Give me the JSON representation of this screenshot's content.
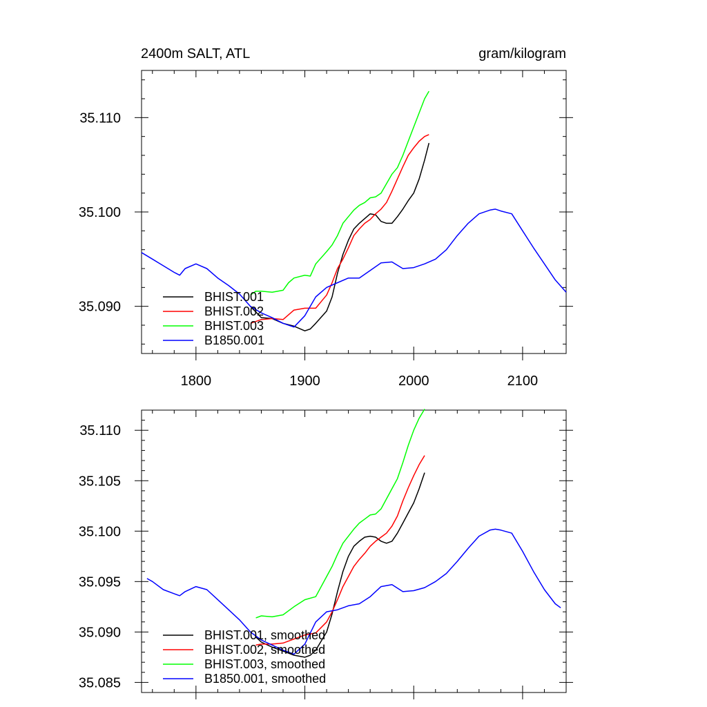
{
  "chart_data": [
    {
      "type": "line",
      "title_left": "2400m SALT, ATL",
      "title_right": "gram/kilogram",
      "xlim": [
        1750,
        2140
      ],
      "ylim": [
        35.085,
        35.115
      ],
      "xticks": [
        1800,
        1900,
        2000,
        2100
      ],
      "xticklabels": [
        "1800",
        "1900",
        "2000",
        "2100"
      ],
      "yticks": [
        35.09,
        35.1,
        35.11
      ],
      "yticklabels": [
        "35.090",
        "35.100",
        "35.110"
      ],
      "legend_position": "bottom-left",
      "series": [
        {
          "name": "BHIST.001",
          "color": "#000000",
          "x": [
            1850,
            1860,
            1870,
            1880,
            1890,
            1900,
            1905,
            1910,
            1920,
            1925,
            1930,
            1935,
            1940,
            1945,
            1950,
            1955,
            1960,
            1965,
            1970,
            1975,
            1980,
            1985,
            1990,
            1995,
            2000,
            2005,
            2010,
            2014
          ],
          "y": [
            35.09,
            35.0888,
            35.0887,
            35.0882,
            35.0879,
            35.0874,
            35.0876,
            35.0882,
            35.0895,
            35.091,
            35.0935,
            35.0955,
            35.097,
            35.0982,
            35.0988,
            35.0993,
            35.0998,
            35.0997,
            35.099,
            35.0988,
            35.0988,
            35.0995,
            35.1003,
            35.1012,
            35.102,
            35.1035,
            35.1055,
            35.1073
          ]
        },
        {
          "name": "BHIST.002",
          "color": "#ff0000",
          "x": [
            1850,
            1860,
            1870,
            1880,
            1890,
            1900,
            1910,
            1915,
            1920,
            1925,
            1930,
            1935,
            1940,
            1945,
            1950,
            1955,
            1960,
            1965,
            1970,
            1975,
            1980,
            1985,
            1990,
            1995,
            2000,
            2005,
            2010,
            2014
          ],
          "y": [
            35.0882,
            35.0886,
            35.0887,
            35.0886,
            35.0896,
            35.0898,
            35.0898,
            35.0905,
            35.0912,
            35.0925,
            35.094,
            35.095,
            35.0962,
            35.0975,
            35.0982,
            35.0988,
            35.0992,
            35.0998,
            35.1003,
            35.101,
            35.1022,
            35.1035,
            35.1048,
            35.106,
            35.1068,
            35.1075,
            35.108,
            35.1082
          ]
        },
        {
          "name": "BHIST.003",
          "color": "#00ff00",
          "x": [
            1850,
            1855,
            1860,
            1870,
            1880,
            1885,
            1890,
            1900,
            1905,
            1910,
            1920,
            1925,
            1930,
            1935,
            1940,
            1945,
            1950,
            1955,
            1960,
            1965,
            1970,
            1975,
            1980,
            1985,
            1990,
            1995,
            2000,
            2005,
            2010,
            2014
          ],
          "y": [
            35.0912,
            35.0916,
            35.0916,
            35.0915,
            35.0917,
            35.0925,
            35.093,
            35.0933,
            35.0932,
            35.0945,
            35.0958,
            35.0965,
            35.0975,
            35.0988,
            35.0995,
            35.1002,
            35.1007,
            35.101,
            35.1015,
            35.1016,
            35.102,
            35.103,
            35.104,
            35.1047,
            35.106,
            35.1075,
            35.109,
            35.1105,
            35.112,
            35.1128
          ]
        },
        {
          "name": "B1850.001",
          "color": "#0000ff",
          "x": [
            1750,
            1760,
            1770,
            1780,
            1785,
            1790,
            1800,
            1810,
            1820,
            1830,
            1840,
            1850,
            1860,
            1870,
            1880,
            1890,
            1900,
            1910,
            1920,
            1930,
            1940,
            1950,
            1960,
            1970,
            1980,
            1990,
            2000,
            2010,
            2020,
            2030,
            2040,
            2050,
            2060,
            2070,
            2075,
            2080,
            2090,
            2100,
            2110,
            2120,
            2130,
            2140
          ],
          "y": [
            35.0957,
            35.095,
            35.0943,
            35.0936,
            35.0933,
            35.094,
            35.0945,
            35.094,
            35.093,
            35.0922,
            35.0913,
            35.09,
            35.0893,
            35.0888,
            35.0882,
            35.0878,
            35.089,
            35.091,
            35.092,
            35.0925,
            35.093,
            35.093,
            35.0938,
            35.0946,
            35.0947,
            35.094,
            35.0941,
            35.0945,
            35.095,
            35.096,
            35.0975,
            35.0988,
            35.0998,
            35.1002,
            35.1003,
            35.1001,
            35.0998,
            35.098,
            35.0962,
            35.0945,
            35.0928,
            35.0915
          ]
        }
      ]
    },
    {
      "type": "line",
      "xlim": [
        1750,
        2140
      ],
      "ylim": [
        35.084,
        35.112
      ],
      "xticks": [
        1800,
        1900,
        2000,
        2100
      ],
      "yticks": [
        35.085,
        35.09,
        35.095,
        35.1,
        35.105,
        35.11
      ],
      "yticklabels": [
        "35.085",
        "35.090",
        "35.095",
        "35.100",
        "35.105",
        "35.110"
      ],
      "legend_position": "bottom-left",
      "series": [
        {
          "name": "BHIST.001, smoothed",
          "color": "#000000",
          "x": [
            1855,
            1860,
            1870,
            1880,
            1890,
            1900,
            1905,
            1910,
            1920,
            1925,
            1930,
            1935,
            1940,
            1945,
            1950,
            1955,
            1960,
            1965,
            1970,
            1975,
            1980,
            1985,
            1990,
            1995,
            2000,
            2005,
            2010
          ],
          "y": [
            35.0895,
            35.089,
            35.0885,
            35.0881,
            35.0877,
            35.0875,
            35.0877,
            35.0882,
            35.09,
            35.0918,
            35.094,
            35.096,
            35.0975,
            35.0985,
            35.099,
            35.0994,
            35.0995,
            35.0994,
            35.099,
            35.0988,
            35.099,
            35.0998,
            35.1008,
            35.1018,
            35.1028,
            35.1042,
            35.1058
          ]
        },
        {
          "name": "BHIST.002, smoothed",
          "color": "#ff0000",
          "x": [
            1855,
            1860,
            1870,
            1880,
            1890,
            1900,
            1910,
            1920,
            1925,
            1930,
            1935,
            1940,
            1945,
            1950,
            1955,
            1960,
            1965,
            1970,
            1975,
            1980,
            1985,
            1990,
            1995,
            2000,
            2005,
            2010
          ],
          "y": [
            35.0887,
            35.0888,
            35.0888,
            35.0889,
            35.0893,
            35.0897,
            35.0899,
            35.091,
            35.092,
            35.0932,
            35.0945,
            35.0955,
            35.0965,
            35.0972,
            35.0978,
            35.0985,
            35.099,
            35.0994,
            35.0998,
            35.1005,
            35.1015,
            35.103,
            35.1043,
            35.1055,
            35.1066,
            35.1075
          ]
        },
        {
          "name": "BHIST.003, smoothed",
          "color": "#00ff00",
          "x": [
            1855,
            1860,
            1870,
            1880,
            1890,
            1900,
            1910,
            1920,
            1925,
            1930,
            1935,
            1940,
            1945,
            1950,
            1955,
            1960,
            1965,
            1970,
            1975,
            1980,
            1985,
            1990,
            1995,
            2000,
            2005,
            2010
          ],
          "y": [
            35.0914,
            35.0916,
            35.0915,
            35.0917,
            35.0925,
            35.0932,
            35.0935,
            35.0955,
            35.0965,
            35.0977,
            35.0988,
            35.0995,
            35.1002,
            35.1008,
            35.1012,
            35.1016,
            35.1017,
            35.1022,
            35.1032,
            35.1042,
            35.1052,
            35.1068,
            35.1085,
            35.11,
            35.1112,
            35.1121
          ]
        },
        {
          "name": "B1850.001, smoothed",
          "color": "#0000ff",
          "x": [
            1755,
            1760,
            1770,
            1780,
            1785,
            1790,
            1800,
            1810,
            1820,
            1830,
            1840,
            1850,
            1860,
            1870,
            1880,
            1890,
            1900,
            1910,
            1920,
            1930,
            1940,
            1950,
            1960,
            1970,
            1980,
            1990,
            2000,
            2010,
            2020,
            2030,
            2040,
            2050,
            2060,
            2070,
            2075,
            2080,
            2090,
            2100,
            2110,
            2120,
            2130,
            2135
          ],
          "y": [
            35.0953,
            35.095,
            35.0942,
            35.0938,
            35.0936,
            35.094,
            35.0945,
            35.0942,
            35.0932,
            35.0922,
            35.0912,
            35.09,
            35.0892,
            35.0887,
            35.0882,
            35.0878,
            35.0888,
            35.091,
            35.092,
            35.0922,
            35.0926,
            35.0928,
            35.0935,
            35.0945,
            35.0947,
            35.094,
            35.0941,
            35.0944,
            35.095,
            35.0958,
            35.097,
            35.0983,
            35.0995,
            35.1001,
            35.1002,
            35.1001,
            35.0998,
            35.098,
            35.096,
            35.0942,
            35.0928,
            35.0924
          ]
        }
      ]
    }
  ]
}
